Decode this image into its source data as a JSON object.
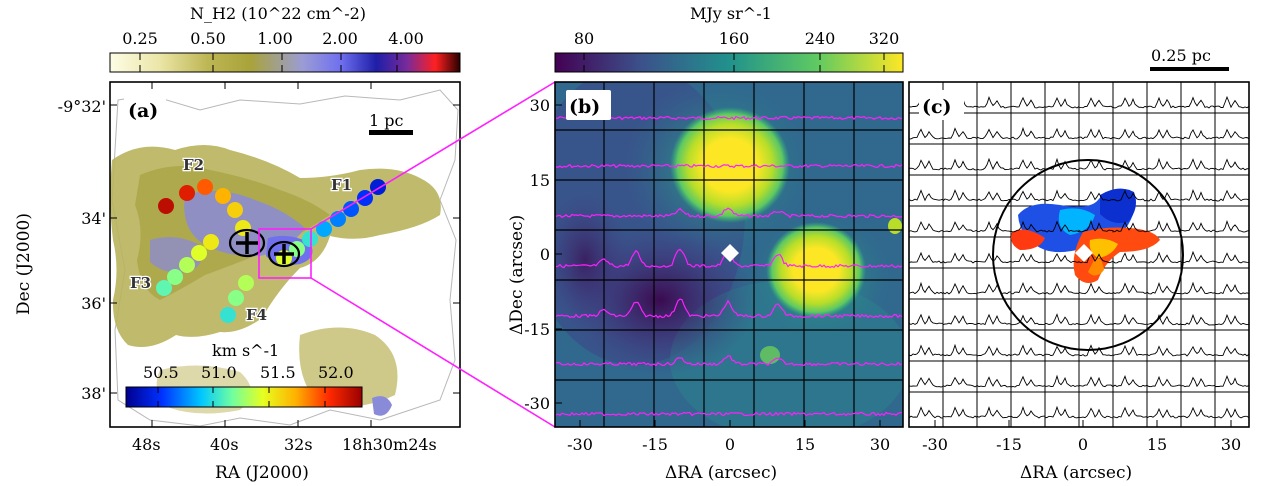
{
  "colors": {
    "spectra_b": "#ff1fff",
    "spectra_c": "#000000",
    "zoom_box": "#ff1fff",
    "marker": "#ffffff"
  },
  "chart_data": [
    {
      "panel": "(a)",
      "type": "heatmap",
      "xlabel": "RA (J2000)",
      "ylabel": "Dec (J2000)",
      "x_ticks": [
        "48s",
        "40s",
        "32s",
        "18h30m24s"
      ],
      "y_ticks": [
        "-9°32'",
        "34'",
        "36'",
        "38'"
      ],
      "colorbar": {
        "title": "N_H2 (10^22 cm^-2)",
        "ticks": [
          "0.25",
          "0.50",
          "1.00",
          "2.00",
          "4.00"
        ],
        "colors": [
          "#fdfde6",
          "#d4cf7a",
          "#a9a33a",
          "#9a9bd0",
          "#7c7cf2",
          "#2a2ac8",
          "#7a2a9a",
          "#ff2020",
          "#2a0000"
        ]
      },
      "scale_bar": "1 pc",
      "filament_labels": [
        "F1",
        "F2",
        "F3",
        "F4"
      ],
      "velocity_colorbar": {
        "title": "km s^-1",
        "ticks": [
          "50.5",
          "51.0",
          "51.5",
          "52.0"
        ],
        "range": [
          50.2,
          52.3
        ]
      },
      "series": [
        {
          "name": "F1",
          "velocity_kms": [
            50.4,
            50.5,
            50.6,
            50.7,
            50.8,
            51.0,
            51.2,
            51.4
          ]
        },
        {
          "name": "F2",
          "velocity_kms": [
            52.2,
            52.1,
            51.9,
            51.7,
            51.6,
            51.5
          ]
        },
        {
          "name": "F3",
          "velocity_kms": [
            51.1,
            51.2,
            51.3,
            51.4,
            51.5
          ]
        },
        {
          "name": "F4",
          "velocity_kms": [
            51.0,
            51.2,
            51.3
          ]
        }
      ]
    },
    {
      "panel": "(b)",
      "type": "heatmap",
      "xlabel": "ΔRA (arcsec)",
      "ylabel": "ΔDec (arcsec)",
      "x_ticks": [
        -30,
        -15,
        0,
        15,
        30
      ],
      "y_ticks": [
        30,
        15,
        0,
        -15,
        -30
      ],
      "xlim": [
        -35,
        35
      ],
      "ylim": [
        -35,
        35
      ],
      "colorbar": {
        "title": "MJy sr^-1",
        "ticks": [
          "80",
          "160",
          "240",
          "320"
        ],
        "colors": [
          "#440154",
          "#3b528b",
          "#21918c",
          "#5ec962",
          "#fde725"
        ]
      },
      "peaks": [
        {
          "x": 3,
          "y": 18,
          "intensity": 340
        },
        {
          "x": 19,
          "y": -3,
          "intensity": 330
        }
      ]
    },
    {
      "panel": "(c)",
      "type": "heatmap",
      "xlabel": "ΔRA (arcsec)",
      "ylabel": "",
      "x_ticks": [
        -30,
        -15,
        0,
        15,
        30
      ],
      "xlim": [
        -35,
        35
      ],
      "ylim": [
        -35,
        35
      ],
      "scale_bar": "0.25 pc",
      "beam_circle_radius_arcsec": 20
    }
  ]
}
